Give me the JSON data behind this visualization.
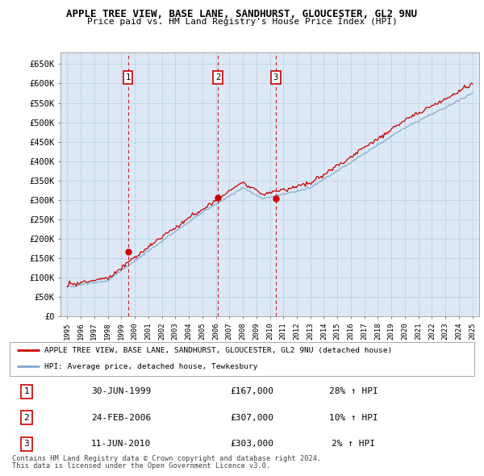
{
  "title_line1": "APPLE TREE VIEW, BASE LANE, SANDHURST, GLOUCESTER, GL2 9NU",
  "title_line2": "Price paid vs. HM Land Registry's House Price Index (HPI)",
  "ylabel_ticks": [
    "£0",
    "£50K",
    "£100K",
    "£150K",
    "£200K",
    "£250K",
    "£300K",
    "£350K",
    "£400K",
    "£450K",
    "£500K",
    "£550K",
    "£600K",
    "£650K"
  ],
  "ytick_vals": [
    0,
    50000,
    100000,
    150000,
    200000,
    250000,
    300000,
    350000,
    400000,
    450000,
    500000,
    550000,
    600000,
    650000
  ],
  "ylim": [
    0,
    680000
  ],
  "sale_dates": [
    1999.5,
    2006.15,
    2010.44
  ],
  "sale_prices": [
    167000,
    307000,
    303000
  ],
  "sale_labels": [
    "1",
    "2",
    "3"
  ],
  "dashed_line_color": "#cc0000",
  "red_line_color": "#cc0000",
  "blue_line_color": "#7aaad0",
  "chart_bg_color": "#dce8f5",
  "background_color": "#ffffff",
  "grid_color": "#b8cfe0",
  "legend_entry1": "APPLE TREE VIEW, BASE LANE, SANDHURST, GLOUCESTER, GL2 9NU (detached house)",
  "legend_entry2": "HPI: Average price, detached house, Tewkesbury",
  "table_rows": [
    [
      "1",
      "30-JUN-1999",
      "£167,000",
      "28% ↑ HPI"
    ],
    [
      "2",
      "24-FEB-2006",
      "£307,000",
      "10% ↑ HPI"
    ],
    [
      "3",
      "11-JUN-2010",
      "£303,000",
      "2% ↑ HPI"
    ]
  ],
  "footnote1": "Contains HM Land Registry data © Crown copyright and database right 2024.",
  "footnote2": "This data is licensed under the Open Government Licence v3.0."
}
